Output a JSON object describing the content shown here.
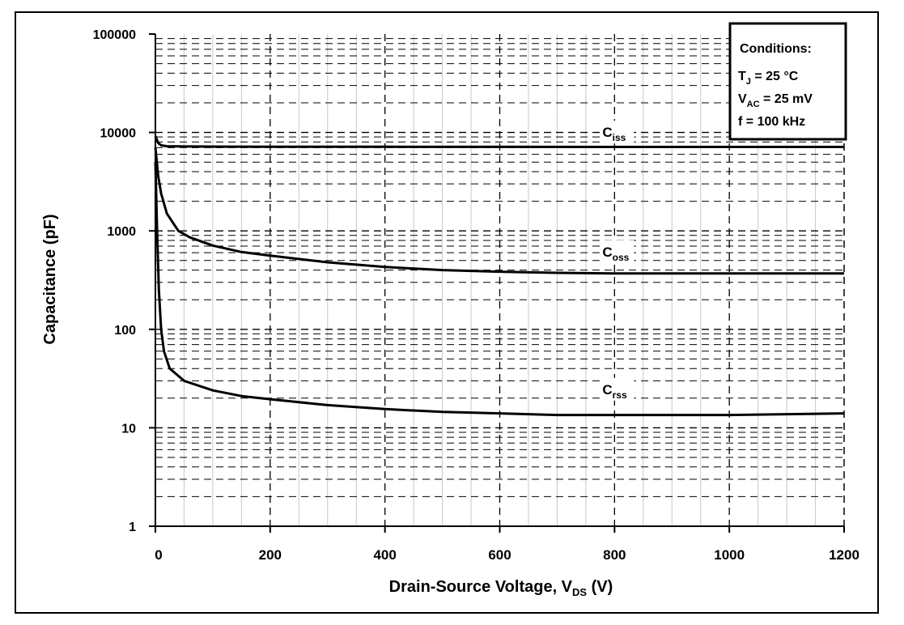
{
  "chart_data": {
    "type": "line",
    "title": "",
    "xlabel": "Drain-Source Voltage, VDS (V)",
    "xlabel_main": "Drain-Source Voltage, V",
    "xlabel_sub": "DS",
    "xlabel_tail": " (V)",
    "ylabel": "Capacitance (pF)",
    "xlim": [
      0,
      1200
    ],
    "ylim": [
      1,
      100000
    ],
    "yscale": "log",
    "grid": true,
    "x_ticks": [
      "0",
      "200",
      "400",
      "600",
      "800",
      "1000",
      "1200"
    ],
    "y_ticks": [
      "1",
      "10",
      "100",
      "1000",
      "10000",
      "100000"
    ],
    "legend_placement": "top-right",
    "legend": {
      "heading": "Conditions:",
      "lines": [
        {
          "main": "T",
          "sub": "J",
          "rest": " = 25 °C"
        },
        {
          "main": "V",
          "sub": "AC",
          "rest": " = 25 mV"
        },
        {
          "main": "f = 100 kHz",
          "sub": "",
          "rest": ""
        }
      ]
    },
    "series": [
      {
        "name": "Ciss",
        "label_main": "C",
        "label_sub": "iss",
        "x": [
          0,
          5,
          10,
          20,
          50,
          100,
          200,
          400,
          600,
          800,
          1000,
          1200
        ],
        "y": [
          9200,
          7800,
          7400,
          7250,
          7200,
          7180,
          7160,
          7150,
          7140,
          7130,
          7125,
          7120
        ]
      },
      {
        "name": "Coss",
        "label_main": "C",
        "label_sub": "oss",
        "x": [
          0,
          5,
          10,
          20,
          40,
          60,
          100,
          150,
          200,
          300,
          400,
          500,
          600,
          700,
          800,
          1000,
          1200
        ],
        "y": [
          7000,
          3600,
          2400,
          1500,
          1000,
          860,
          710,
          610,
          560,
          480,
          430,
          400,
          385,
          375,
          370,
          370,
          370
        ]
      },
      {
        "name": "Crss",
        "label_main": "C",
        "label_sub": "rss",
        "x": [
          0,
          3,
          6,
          10,
          15,
          25,
          50,
          100,
          150,
          200,
          300,
          400,
          500,
          600,
          700,
          800,
          1000,
          1200
        ],
        "y": [
          5000,
          1000,
          250,
          100,
          60,
          40,
          30,
          24,
          21,
          19.5,
          17,
          15.5,
          14.5,
          14,
          13.5,
          13.5,
          13.5,
          14
        ]
      }
    ],
    "label_positions": [
      {
        "series": "Ciss",
        "x": 800,
        "y": 9000
      },
      {
        "series": "Coss",
        "x": 800,
        "y": 550
      },
      {
        "series": "Crss",
        "x": 800,
        "y": 22
      }
    ]
  }
}
